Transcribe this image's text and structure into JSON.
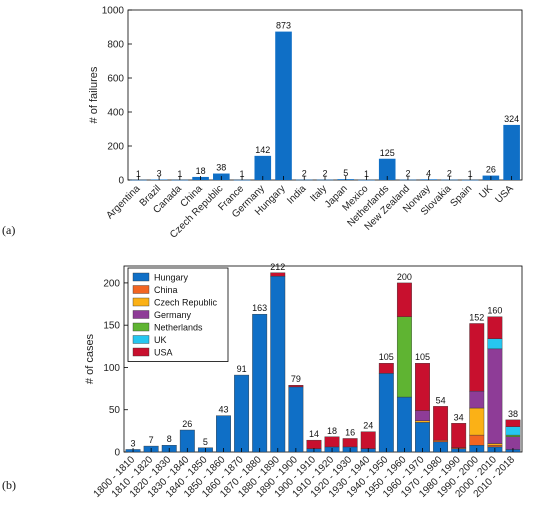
{
  "chart_data": [
    {
      "panel_label": "(a)",
      "type": "bar",
      "ylabel": "# of failures",
      "ylim": [
        0,
        1000
      ],
      "yticks": [
        0,
        200,
        400,
        600,
        800,
        1000
      ],
      "categories": [
        "Argentina",
        "Brazil",
        "Canada",
        "China",
        "Czech Republic",
        "France",
        "Germany",
        "Hungary",
        "India",
        "Italy",
        "Japan",
        "Mexico",
        "Netherlands",
        "New Zealand",
        "Norway",
        "Slovakia",
        "Spain",
        "UK",
        "USA"
      ],
      "values": [
        1,
        3,
        1,
        18,
        38,
        1,
        142,
        873,
        2,
        2,
        5,
        1,
        125,
        2,
        4,
        2,
        1,
        26,
        324
      ],
      "color": "#0f6fc6"
    },
    {
      "panel_label": "(b)",
      "type": "bar",
      "stacked": true,
      "ylabel": "# of cases",
      "ylim": [
        0,
        220
      ],
      "yticks": [
        0,
        50,
        100,
        150,
        200
      ],
      "legend_position": "top-left",
      "categories": [
        "1800 - 1810",
        "1810 - 1820",
        "1820 - 1830",
        "1830 - 1840",
        "1840 - 1850",
        "1850 - 1860",
        "1860 - 1870",
        "1870 - 1880",
        "1880 - 1890",
        "1890 - 1900",
        "1900 - 1910",
        "1910 - 1920",
        "1920 - 1930",
        "1930 - 1940",
        "1940 - 1950",
        "1950 - 1960",
        "1960 - 1970",
        "1970 - 1980",
        "1980 - 1990",
        "1990 - 2000",
        "2000 - 2010",
        "2010 - 2018"
      ],
      "totals": [
        3,
        7,
        8,
        26,
        5,
        43,
        91,
        163,
        212,
        79,
        14,
        18,
        16,
        24,
        105,
        200,
        105,
        54,
        34,
        152,
        160,
        38
      ],
      "series": [
        {
          "name": "Hungary",
          "color": "#0f6fc6",
          "values": [
            3,
            7,
            8,
            26,
            5,
            43,
            91,
            163,
            208,
            77,
            4,
            6,
            6,
            4,
            93,
            65,
            35,
            12,
            4,
            8,
            6,
            3
          ]
        },
        {
          "name": "China",
          "color": "#f26522",
          "values": [
            0,
            0,
            0,
            0,
            0,
            0,
            0,
            0,
            0,
            0,
            0,
            0,
            0,
            0,
            0,
            0,
            0,
            2,
            1,
            12,
            2,
            0
          ]
        },
        {
          "name": "Czech Republic",
          "color": "#fbb116",
          "values": [
            0,
            0,
            0,
            0,
            0,
            0,
            0,
            0,
            0,
            0,
            0,
            0,
            0,
            0,
            0,
            0,
            2,
            0,
            0,
            32,
            2,
            0
          ]
        },
        {
          "name": "Germany",
          "color": "#8e3c97",
          "values": [
            0,
            0,
            0,
            0,
            0,
            0,
            0,
            0,
            0,
            0,
            0,
            0,
            0,
            0,
            0,
            0,
            12,
            0,
            0,
            20,
            112,
            15
          ]
        },
        {
          "name": "Netherlands",
          "color": "#5fb432",
          "values": [
            0,
            0,
            0,
            0,
            0,
            0,
            0,
            0,
            0,
            0,
            0,
            0,
            0,
            0,
            0,
            95,
            0,
            0,
            0,
            0,
            0,
            2
          ]
        },
        {
          "name": "UK",
          "color": "#26c6f0",
          "values": [
            0,
            0,
            0,
            0,
            0,
            0,
            0,
            0,
            0,
            0,
            0,
            0,
            0,
            0,
            0,
            0,
            0,
            0,
            0,
            0,
            12,
            10
          ]
        },
        {
          "name": "USA",
          "color": "#c8102e",
          "values": [
            0,
            0,
            0,
            0,
            0,
            0,
            0,
            0,
            4,
            2,
            10,
            12,
            10,
            20,
            12,
            40,
            56,
            40,
            29,
            80,
            26,
            8
          ]
        }
      ]
    }
  ]
}
